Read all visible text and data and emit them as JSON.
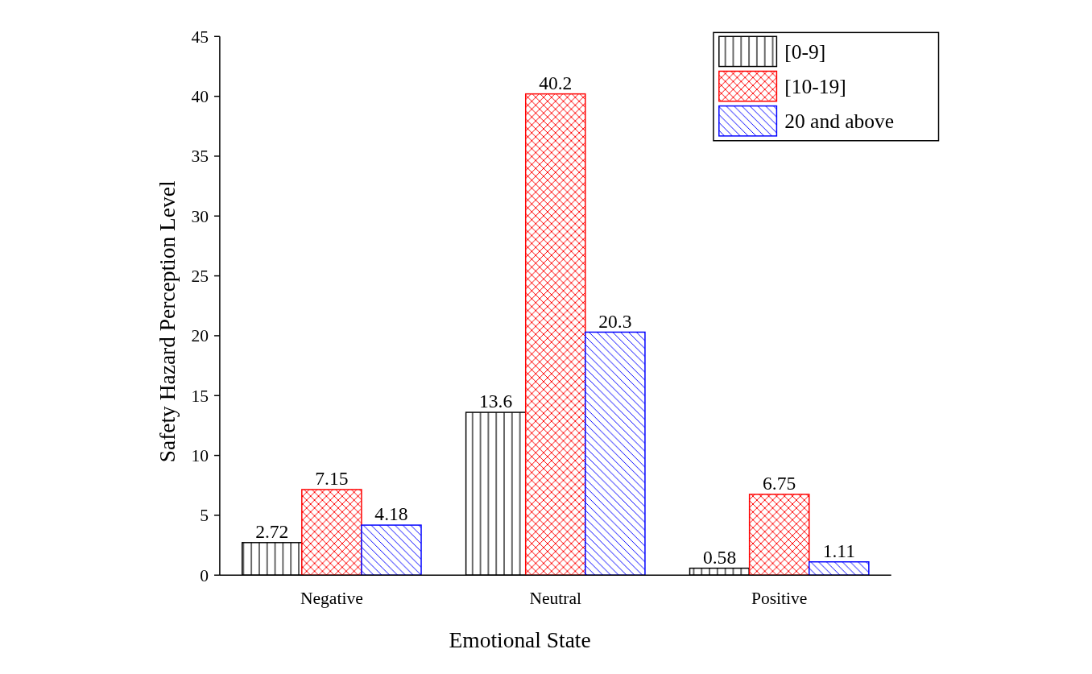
{
  "chart_data": {
    "type": "bar",
    "xlabel": "Emotional State",
    "ylabel": "Safety Hazard Perception Level",
    "categories": [
      "Negative",
      "Neutral",
      "Positive"
    ],
    "series": [
      {
        "name": "[0-9]",
        "color": "#000000",
        "values": [
          2.72,
          13.6,
          0.58
        ]
      },
      {
        "name": "[10-19]",
        "color": "#ff0000",
        "values": [
          7.15,
          40.2,
          6.75
        ]
      },
      {
        "name": "20 and above",
        "color": "#0000ff",
        "values": [
          4.18,
          20.3,
          1.11
        ]
      }
    ],
    "ylim": [
      0,
      45
    ],
    "yticks": [
      0,
      5,
      10,
      15,
      20,
      25,
      30,
      35,
      40,
      45
    ],
    "grid": false,
    "legend": "top right",
    "data_labels": true
  }
}
